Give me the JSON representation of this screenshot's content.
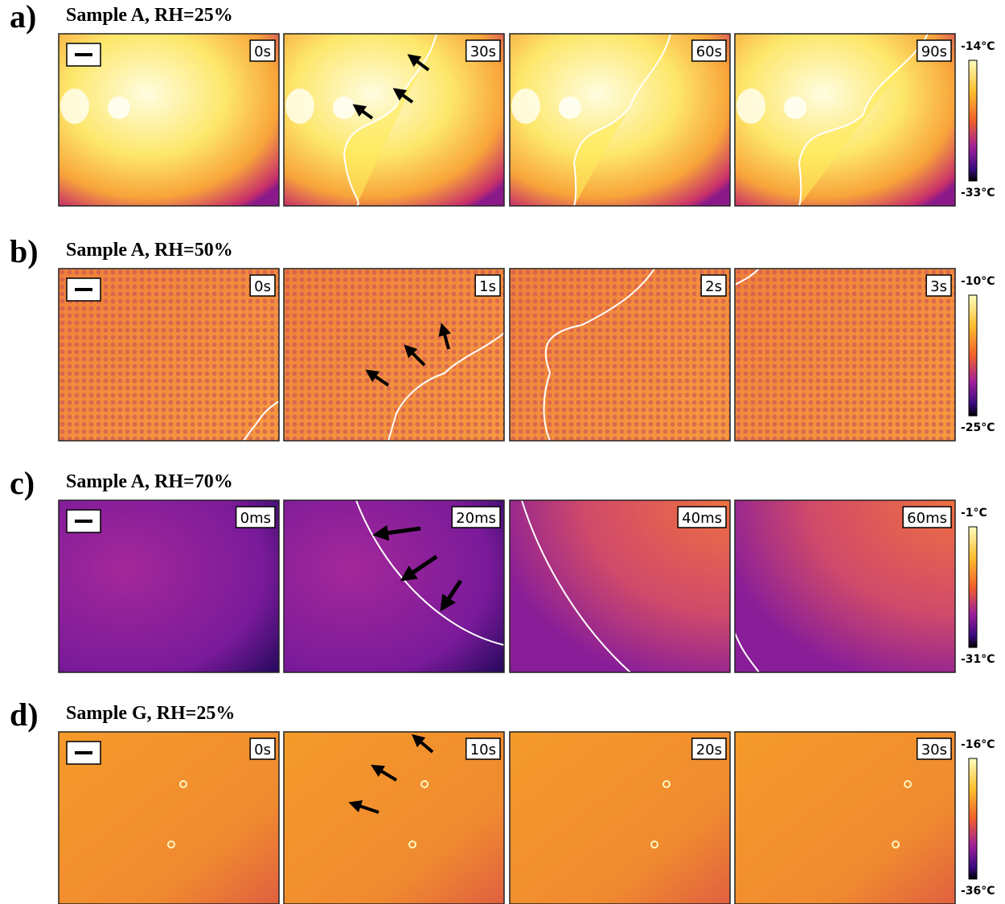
{
  "rows": [
    {
      "label": "a)",
      "title": "Sample A, RH=25%",
      "frames": [
        "0s",
        "30s",
        "60s",
        "90s"
      ],
      "colorbar": {
        "max": "-14°C",
        "min": "-33°C"
      }
    },
    {
      "label": "b)",
      "title": "Sample A, RH=50%",
      "frames": [
        "0s",
        "1s",
        "2s",
        "3s"
      ],
      "colorbar": {
        "max": "-10°C",
        "min": "-25°C"
      }
    },
    {
      "label": "c)",
      "title": "Sample A, RH=70%",
      "frames": [
        "0ms",
        "20ms",
        "40ms",
        "60ms"
      ],
      "colorbar": {
        "max": "-1°C",
        "min": "-31°C"
      }
    },
    {
      "label": "d)",
      "title": "Sample G, RH=25%",
      "frames": [
        "0s",
        "10s",
        "20s",
        "30s"
      ],
      "colorbar": {
        "max": "-16°C",
        "min": "-36°C"
      }
    }
  ]
}
